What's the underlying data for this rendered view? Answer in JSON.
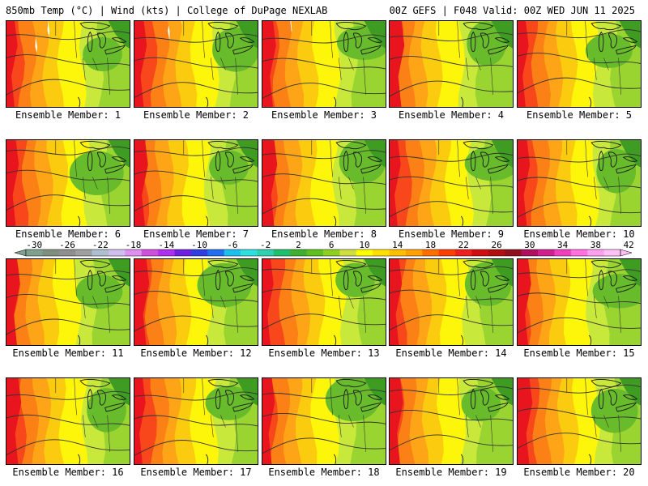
{
  "header": {
    "title_left": "850mb Temp (°C) | Wind (kts) | College of DuPage NEXLAB",
    "title_right": "00Z GEFS | F048 Valid: 00Z WED JUN 11 2025"
  },
  "panels": [
    {
      "label": "Ensemble Member: 1"
    },
    {
      "label": "Ensemble Member: 2"
    },
    {
      "label": "Ensemble Member: 3"
    },
    {
      "label": "Ensemble Member: 4"
    },
    {
      "label": "Ensemble Member: 5"
    },
    {
      "label": "Ensemble Member: 6"
    },
    {
      "label": "Ensemble Member: 7"
    },
    {
      "label": "Ensemble Member: 8"
    },
    {
      "label": "Ensemble Member: 9"
    },
    {
      "label": "Ensemble Member: 10"
    },
    {
      "label": "Ensemble Member: 11"
    },
    {
      "label": "Ensemble Member: 12"
    },
    {
      "label": "Ensemble Member: 13"
    },
    {
      "label": "Ensemble Member: 14"
    },
    {
      "label": "Ensemble Member: 15"
    },
    {
      "label": "Ensemble Member: 16"
    },
    {
      "label": "Ensemble Member: 17"
    },
    {
      "label": "Ensemble Member: 18"
    },
    {
      "label": "Ensemble Member: 19"
    },
    {
      "label": "Ensemble Member: 20"
    }
  ],
  "colorbar": {
    "tick_labels": [
      "-30",
      "-26",
      "-22",
      "-18",
      "-14",
      "-10",
      "-6",
      "-2",
      "2",
      "6",
      "10",
      "14",
      "18",
      "22",
      "26",
      "30",
      "34",
      "38",
      "42"
    ],
    "colors": [
      "#7f9f8f",
      "#7f8f7f",
      "#8f8f8f",
      "#9f9f9f",
      "#afbfcf",
      "#cfbfef",
      "#df8fef",
      "#cf4fdf",
      "#af2fef",
      "#6f1fdf",
      "#2f3fdf",
      "#1f6fef",
      "#1fbfef",
      "#2fdfdf",
      "#2fcfaf",
      "#1fbf6f",
      "#3faf2f",
      "#5fbf1f",
      "#8fcf1f",
      "#cfdf3f",
      "#ffff00",
      "#ffdf00",
      "#ffbf00",
      "#ff9f00",
      "#ff6f00",
      "#ff3f00",
      "#ef1f1f",
      "#cf0f0f",
      "#af0f0f",
      "#8f0f1f",
      "#af0f5f",
      "#cf1f8f",
      "#ef3fbf",
      "#ff6fdf",
      "#ff9fef",
      "#ffbff7"
    ]
  },
  "field_colors": {
    "dark_red": "#e8141e",
    "red_orange": "#f8471b",
    "orange": "#fb8117",
    "light_orange": "#fda516",
    "gold": "#fbcb10",
    "yellow": "#fdf50a",
    "yellow_green": "#c8e83c",
    "light_green": "#9ad431",
    "green": "#68bb2a",
    "dark_green": "#3f9c22"
  }
}
